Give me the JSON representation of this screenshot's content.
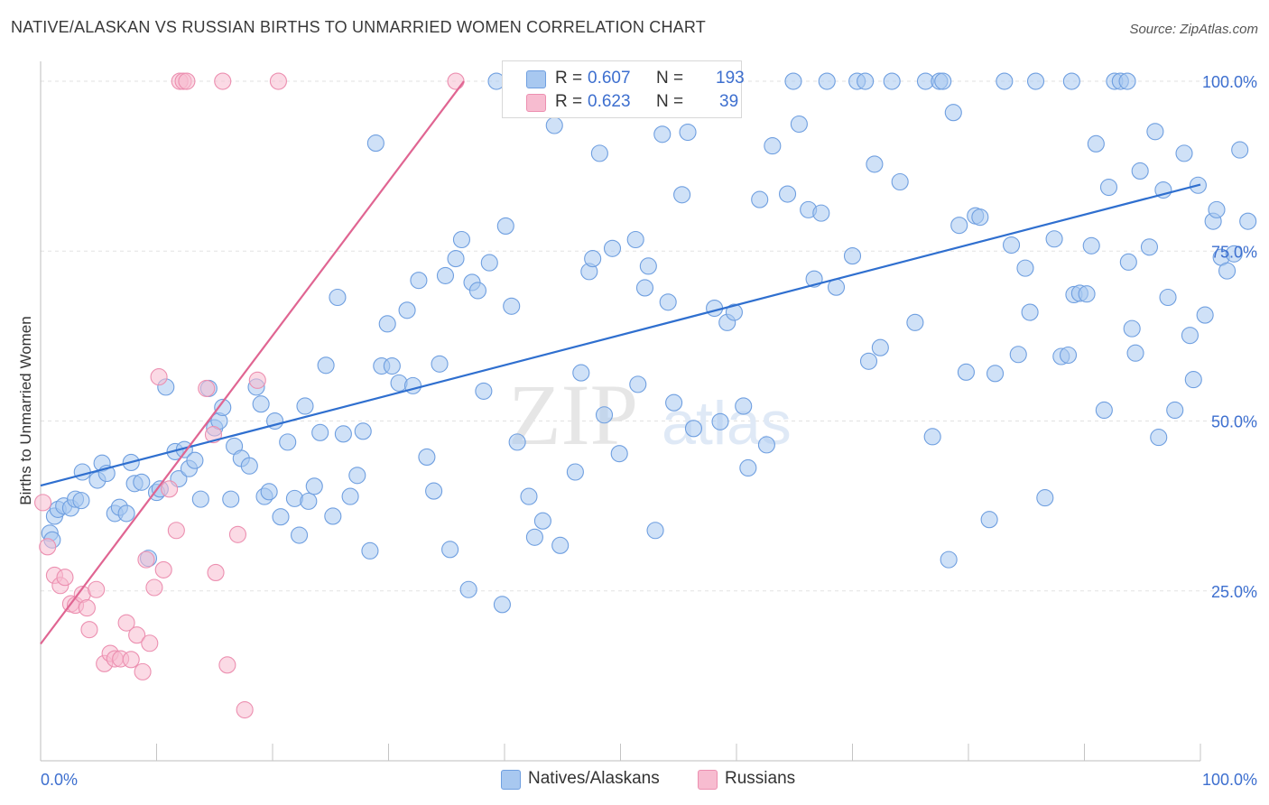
{
  "header": {
    "title": "NATIVE/ALASKAN VS RUSSIAN BIRTHS TO UNMARRIED WOMEN CORRELATION CHART",
    "source": "Source: ZipAtlas.com"
  },
  "watermark": {
    "text_a": "ZIP",
    "text_b": "atlas"
  },
  "stats_legend": {
    "rows": [
      {
        "r_label": "R =",
        "r_value": "0.607",
        "n_label": "N =",
        "n_value": "193",
        "color": "#a8c8f0",
        "border": "#6f9fe0"
      },
      {
        "r_label": "R =",
        "r_value": "0.623",
        "n_label": "N =",
        "n_value": "39",
        "color": "#f7bcd0",
        "border": "#ec8fb0"
      }
    ]
  },
  "bottom_legend": [
    {
      "label": "Natives/Alaskans",
      "color": "#a8c8f0",
      "border": "#6f9fe0"
    },
    {
      "label": "Russians",
      "color": "#f7bcd0",
      "border": "#ec8fb0"
    }
  ],
  "chart_data": {
    "type": "scatter",
    "title": "NATIVE/ALASKAN VS RUSSIAN BIRTHS TO UNMARRIED WOMEN CORRELATION CHART",
    "xlabel": "",
    "ylabel": "Births to Unmarried Women",
    "xlim": [
      0,
      100
    ],
    "ylim": [
      0,
      102
    ],
    "x_tick_labels": [
      "0.0%",
      "100.0%"
    ],
    "y_tick_labels": [
      "25.0%",
      "50.0%",
      "75.0%",
      "100.0%"
    ],
    "y_tick_values": [
      25,
      50,
      75,
      100
    ],
    "grid": true,
    "series": [
      {
        "name": "Natives/Alaskans",
        "color": "#a8c8f0",
        "stroke": "#6f9fe0",
        "trend": {
          "x": [
            0,
            100
          ],
          "y": [
            40.5,
            84.8
          ],
          "color": "#2f6fcf"
        },
        "points": [
          [
            0.8,
            33.5
          ],
          [
            1,
            32.5
          ],
          [
            1.2,
            36
          ],
          [
            1.5,
            37
          ],
          [
            2,
            37.5
          ],
          [
            2.6,
            37.2
          ],
          [
            3,
            38.5
          ],
          [
            3.5,
            38.3
          ],
          [
            3.6,
            42.5
          ],
          [
            4.9,
            41.3
          ],
          [
            5.3,
            43.8
          ],
          [
            5.7,
            42.3
          ],
          [
            6.4,
            36.4
          ],
          [
            6.8,
            37.3
          ],
          [
            7.4,
            36.4
          ],
          [
            7.8,
            43.9
          ],
          [
            8.1,
            40.8
          ],
          [
            8.7,
            41
          ],
          [
            9.3,
            29.8
          ],
          [
            10,
            39.5
          ],
          [
            10.3,
            40
          ],
          [
            10.8,
            55
          ],
          [
            11.6,
            45.5
          ],
          [
            11.9,
            41.5
          ],
          [
            12.4,
            45.8
          ],
          [
            12.8,
            43
          ],
          [
            13.3,
            44.2
          ],
          [
            13.8,
            38.5
          ],
          [
            14.5,
            54.8
          ],
          [
            15,
            49
          ],
          [
            15.4,
            50
          ],
          [
            15.7,
            52
          ],
          [
            16.4,
            38.5
          ],
          [
            16.7,
            46.3
          ],
          [
            17.3,
            44.5
          ],
          [
            18,
            43.4
          ],
          [
            18.6,
            55
          ],
          [
            19,
            52.5
          ],
          [
            19.3,
            38.9
          ],
          [
            19.7,
            39.6
          ],
          [
            20.2,
            50
          ],
          [
            20.7,
            35.9
          ],
          [
            21.3,
            46.9
          ],
          [
            21.9,
            38.6
          ],
          [
            22.3,
            33.2
          ],
          [
            22.8,
            52.2
          ],
          [
            23.1,
            38.2
          ],
          [
            23.6,
            40.4
          ],
          [
            24.1,
            48.3
          ],
          [
            24.6,
            58.2
          ],
          [
            25.2,
            36
          ],
          [
            25.6,
            68.2
          ],
          [
            26.1,
            48.1
          ],
          [
            26.7,
            38.9
          ],
          [
            27.3,
            42
          ],
          [
            27.8,
            48.5
          ],
          [
            28.4,
            30.9
          ],
          [
            28.9,
            90.9
          ],
          [
            29.4,
            58.1
          ],
          [
            29.9,
            64.3
          ],
          [
            30.3,
            58.1
          ],
          [
            30.9,
            55.6
          ],
          [
            31.6,
            66.3
          ],
          [
            32.1,
            55.2
          ],
          [
            32.6,
            70.7
          ],
          [
            33.3,
            44.7
          ],
          [
            33.9,
            39.7
          ],
          [
            34.4,
            58.4
          ],
          [
            34.9,
            71.4
          ],
          [
            35.3,
            31.1
          ],
          [
            35.8,
            73.9
          ],
          [
            36.3,
            76.7
          ],
          [
            36.9,
            25.2
          ],
          [
            37.2,
            70.4
          ],
          [
            37.7,
            69.2
          ],
          [
            38.2,
            54.4
          ],
          [
            38.7,
            73.3
          ],
          [
            39.3,
            100
          ],
          [
            39.8,
            23
          ],
          [
            40.1,
            78.7
          ],
          [
            40.6,
            66.9
          ],
          [
            41.1,
            46.9
          ],
          [
            42.1,
            38.9
          ],
          [
            42.6,
            32.9
          ],
          [
            43.3,
            35.3
          ],
          [
            43.8,
            97.5
          ],
          [
            44.3,
            93.5
          ],
          [
            44.8,
            31.7
          ],
          [
            45.3,
            100
          ],
          [
            46.1,
            42.5
          ],
          [
            46.6,
            57.1
          ],
          [
            47.3,
            72
          ],
          [
            47.6,
            73.9
          ],
          [
            48.2,
            89.4
          ],
          [
            48.6,
            50.9
          ],
          [
            49.3,
            75.4
          ],
          [
            49.9,
            45.2
          ],
          [
            51.3,
            76.7
          ],
          [
            51.5,
            55.4
          ],
          [
            52.1,
            69.6
          ],
          [
            52.4,
            72.8
          ],
          [
            53,
            33.9
          ],
          [
            53.6,
            92.2
          ],
          [
            54.1,
            67.5
          ],
          [
            54.6,
            52.7
          ],
          [
            55.3,
            83.3
          ],
          [
            55.8,
            92.5
          ],
          [
            56.3,
            48.9
          ],
          [
            56.8,
            100
          ],
          [
            58.6,
            49.9
          ],
          [
            58.1,
            66.6
          ],
          [
            59.2,
            64.5
          ],
          [
            59.8,
            66
          ],
          [
            60.6,
            52.2
          ],
          [
            61,
            43.1
          ],
          [
            62,
            82.6
          ],
          [
            62.6,
            46.5
          ],
          [
            63.1,
            90.5
          ],
          [
            64.4,
            83.4
          ],
          [
            64.9,
            100
          ],
          [
            65.4,
            93.7
          ],
          [
            66.2,
            81.1
          ],
          [
            66.7,
            70.9
          ],
          [
            67.3,
            80.6
          ],
          [
            67.8,
            100
          ],
          [
            68.6,
            69.7
          ],
          [
            70,
            74.3
          ],
          [
            70.4,
            100
          ],
          [
            71.1,
            100
          ],
          [
            71.4,
            58.8
          ],
          [
            71.9,
            87.8
          ],
          [
            72.4,
            60.8
          ],
          [
            73.4,
            100
          ],
          [
            74.1,
            85.2
          ],
          [
            75.4,
            64.5
          ],
          [
            76.3,
            100
          ],
          [
            76.9,
            47.7
          ],
          [
            77.5,
            100
          ],
          [
            77.8,
            100
          ],
          [
            78.3,
            29.6
          ],
          [
            78.7,
            95.4
          ],
          [
            79.2,
            78.8
          ],
          [
            79.8,
            57.2
          ],
          [
            80.6,
            80.2
          ],
          [
            81,
            80
          ],
          [
            81.8,
            35.5
          ],
          [
            82.3,
            57
          ],
          [
            83.1,
            100
          ],
          [
            83.7,
            75.9
          ],
          [
            84.3,
            59.8
          ],
          [
            84.9,
            72.5
          ],
          [
            85.3,
            66
          ],
          [
            85.8,
            100
          ],
          [
            86.6,
            38.7
          ],
          [
            87.4,
            76.8
          ],
          [
            88,
            59.5
          ],
          [
            88.6,
            59.7
          ],
          [
            88.9,
            100
          ],
          [
            89.1,
            68.6
          ],
          [
            89.6,
            68.8
          ],
          [
            90.2,
            68.7
          ],
          [
            90.6,
            75.8
          ],
          [
            91,
            90.8
          ],
          [
            91.7,
            51.6
          ],
          [
            92.1,
            84.4
          ],
          [
            92.6,
            100
          ],
          [
            93.1,
            100
          ],
          [
            93.7,
            100
          ],
          [
            93.8,
            73.4
          ],
          [
            94.1,
            63.6
          ],
          [
            94.4,
            60
          ],
          [
            94.8,
            86.8
          ],
          [
            95.6,
            75.6
          ],
          [
            96.1,
            92.6
          ],
          [
            96.4,
            47.6
          ],
          [
            96.8,
            84
          ],
          [
            97.2,
            68.2
          ],
          [
            97.8,
            51.6
          ],
          [
            98.6,
            89.4
          ],
          [
            99.1,
            62.6
          ],
          [
            99.4,
            56.1
          ],
          [
            99.8,
            84.7
          ],
          [
            100.4,
            65.6
          ],
          [
            101.1,
            79.4
          ],
          [
            101.4,
            81.1
          ],
          [
            101.8,
            74.1
          ],
          [
            102.3,
            72.1
          ],
          [
            102.9,
            74.6
          ],
          [
            103.4,
            89.9
          ],
          [
            104.1,
            79.4
          ]
        ]
      },
      {
        "name": "Russians",
        "color": "#f7bcd0",
        "stroke": "#ec8fb0",
        "trend": {
          "x": [
            0,
            36.5
          ],
          "y": [
            17.2,
            100
          ],
          "color": "#e06592"
        },
        "points": [
          [
            0.2,
            38
          ],
          [
            0.6,
            31.5
          ],
          [
            1.2,
            27.3
          ],
          [
            1.7,
            25.8
          ],
          [
            2.1,
            27
          ],
          [
            2.6,
            23.1
          ],
          [
            3,
            22.9
          ],
          [
            3.6,
            24.5
          ],
          [
            4,
            22.5
          ],
          [
            4.2,
            19.3
          ],
          [
            4.8,
            25.2
          ],
          [
            5.5,
            14.3
          ],
          [
            6,
            15.8
          ],
          [
            6.4,
            15
          ],
          [
            6.9,
            15
          ],
          [
            7.4,
            20.3
          ],
          [
            7.8,
            14.9
          ],
          [
            8.3,
            18.5
          ],
          [
            8.8,
            13.1
          ],
          [
            9.1,
            29.6
          ],
          [
            9.4,
            17.3
          ],
          [
            9.8,
            25.5
          ],
          [
            10.2,
            56.5
          ],
          [
            10.6,
            28.1
          ],
          [
            11.1,
            40
          ],
          [
            11.7,
            33.9
          ],
          [
            12,
            100
          ],
          [
            12.3,
            100
          ],
          [
            12.6,
            100
          ],
          [
            14.3,
            54.8
          ],
          [
            14.9,
            48
          ],
          [
            15.1,
            27.7
          ],
          [
            15.7,
            100
          ],
          [
            16.1,
            14.1
          ],
          [
            17,
            33.3
          ],
          [
            17.6,
            7.5
          ],
          [
            18.7,
            56
          ],
          [
            20.5,
            100
          ],
          [
            35.8,
            100
          ]
        ]
      }
    ]
  }
}
